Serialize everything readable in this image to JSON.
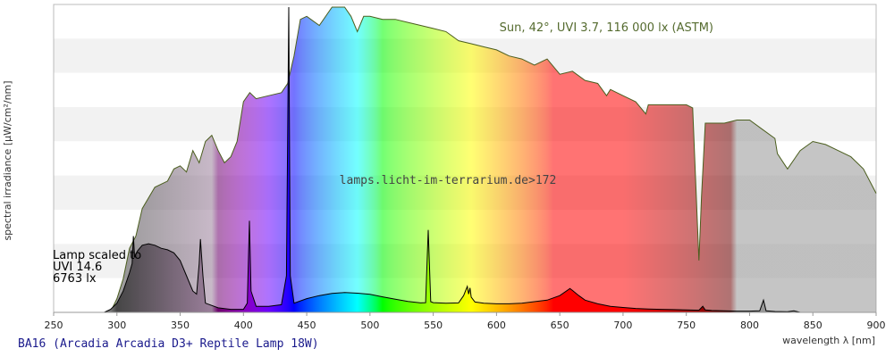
{
  "chart_data": {
    "type": "area",
    "title": "",
    "xlabel": "wavelength λ [nm]",
    "ylabel": "spectral irradiance [µW/cm²/nm]",
    "xlim": [
      250,
      900
    ],
    "x_ticks": [
      250,
      300,
      350,
      400,
      450,
      500,
      550,
      600,
      650,
      700,
      750,
      800,
      850,
      900
    ],
    "y_ticks_shown": false,
    "grid": "horizontal bands",
    "sun_label": "Sun, 42°, UVI 3.7, 116 000 lx (ASTM)",
    "watermark": "lamps.licht-im-terrarium.de>172",
    "lamp_label": [
      "Lamp scaled to",
      "UVI 14.6",
      "6763 lx"
    ],
    "caption": "BA16 (Arcadia Arcadia D3+ Reptile Lamp 18W)",
    "series": [
      {
        "name": "Sun",
        "color": "#4b5e1e",
        "x": [
          295,
          300,
          305,
          310,
          315,
          320,
          330,
          340,
          345,
          350,
          355,
          360,
          365,
          370,
          375,
          380,
          385,
          390,
          395,
          400,
          405,
          410,
          420,
          430,
          435,
          440,
          445,
          450,
          460,
          470,
          480,
          485,
          490,
          495,
          500,
          510,
          520,
          530,
          540,
          550,
          560,
          570,
          580,
          590,
          600,
          610,
          620,
          630,
          640,
          650,
          660,
          670,
          680,
          687,
          690,
          700,
          710,
          718,
          720,
          730,
          740,
          750,
          755,
          760,
          762,
          765,
          770,
          780,
          790,
          800,
          810,
          820,
          822,
          830,
          840,
          850,
          860,
          870,
          880,
          890,
          900
        ],
        "y": [
          0.2,
          4.5,
          11,
          21,
          25,
          34,
          41,
          43,
          47,
          48,
          46,
          53,
          49,
          56,
          58,
          53,
          49,
          51,
          56,
          69,
          72,
          70,
          71,
          72,
          75,
          84,
          96,
          97,
          94,
          100,
          100,
          97,
          92,
          97,
          97,
          96,
          96,
          95,
          94,
          93,
          92,
          89,
          88,
          87,
          86,
          84,
          83,
          81,
          83,
          78,
          79,
          76,
          75,
          71,
          73,
          71,
          69,
          65,
          68,
          68,
          68,
          68,
          67,
          17,
          38,
          62,
          62,
          62,
          63,
          63,
          60,
          57,
          52,
          47,
          53,
          56,
          55,
          53,
          51,
          47,
          39
        ]
      },
      {
        "name": "Lamp",
        "color": "#000000",
        "x": [
          290,
          295,
          300,
          305,
          310,
          312,
          313,
          314,
          316,
          320,
          325,
          330,
          335,
          340,
          345,
          350,
          355,
          360,
          363,
          365,
          366,
          368,
          370,
          380,
          390,
          400,
          403,
          404.7,
          406,
          410,
          420,
          430,
          434,
          435.8,
          437,
          440,
          450,
          460,
          470,
          480,
          490,
          500,
          510,
          520,
          530,
          540,
          544,
          546,
          548,
          550,
          560,
          570,
          574,
          576.9,
          578,
          579,
          580,
          583,
          590,
          600,
          610,
          620,
          630,
          640,
          650,
          658,
          660,
          665,
          670,
          680,
          690,
          700,
          710,
          720,
          730,
          740,
          750,
          760,
          763,
          765,
          770,
          780,
          790,
          800,
          808,
          811,
          813,
          820,
          830,
          835,
          840
        ],
        "y": [
          0,
          1,
          3,
          7,
          13,
          16,
          25,
          18,
          20,
          22,
          22.5,
          22,
          21,
          20.5,
          19.5,
          17,
          12,
          7,
          6,
          16,
          24,
          12,
          3,
          1.5,
          1,
          1,
          3,
          30,
          7,
          2,
          2,
          2.5,
          12,
          100,
          12,
          3,
          4.5,
          5.5,
          6.2,
          6.5,
          6.3,
          5.9,
          5.1,
          4.3,
          3.6,
          3.1,
          3.2,
          27,
          3.5,
          3.2,
          3.0,
          3.1,
          5.5,
          8.5,
          6.0,
          8.0,
          5.0,
          3.4,
          3.0,
          2.8,
          2.8,
          3.0,
          3.5,
          4.0,
          5.5,
          7.8,
          7.2,
          5.5,
          4.0,
          2.8,
          2.0,
          1.6,
          1.3,
          1.1,
          1.0,
          0.9,
          0.8,
          0.7,
          2.0,
          0.8,
          0.6,
          0.5,
          0.4,
          0.4,
          0.5,
          4.0,
          0.5,
          0.3,
          0.2,
          0.5,
          0
        ]
      }
    ]
  }
}
